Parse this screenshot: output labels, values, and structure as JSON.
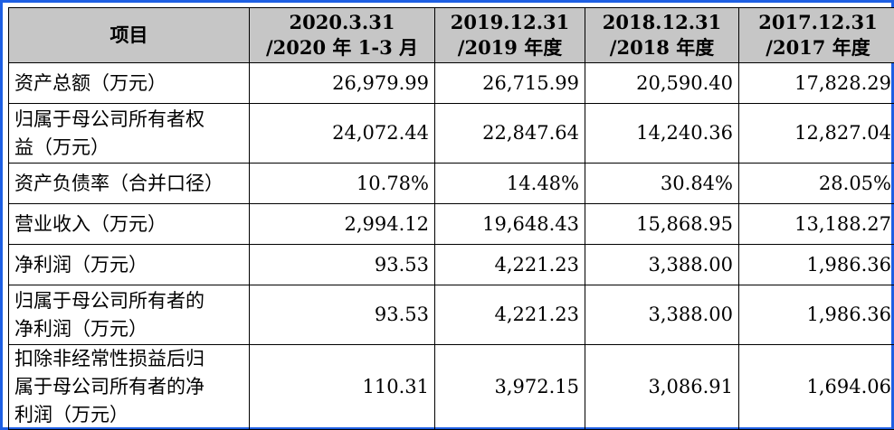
{
  "table": {
    "headers": [
      {
        "lines": [
          "项目"
        ]
      },
      {
        "lines": [
          "2020.3.31",
          "/2020 年 1-3 月"
        ]
      },
      {
        "lines": [
          "2019.12.31",
          "/2019 年度"
        ]
      },
      {
        "lines": [
          "2018.12.31",
          "/2018 年度"
        ]
      },
      {
        "lines": [
          "2017.12.31",
          "/2017 年度"
        ]
      }
    ],
    "rows": [
      {
        "label_lines": [
          "资产总额（万元）"
        ],
        "values": [
          "26,979.99",
          "26,715.99",
          "20,590.40",
          "17,828.29"
        ]
      },
      {
        "label_lines": [
          "归属于母公司所有者权",
          "益（万元）"
        ],
        "values": [
          "24,072.44",
          "22,847.64",
          "14,240.36",
          "12,827.04"
        ]
      },
      {
        "label_lines": [
          "资产负债率（合并口径）"
        ],
        "values": [
          "10.78%",
          "14.48%",
          "30.84%",
          "28.05%"
        ]
      },
      {
        "label_lines": [
          "营业收入（万元）"
        ],
        "values": [
          "2,994.12",
          "19,648.43",
          "15,868.95",
          "13,188.27"
        ]
      },
      {
        "label_lines": [
          "净利润（万元）"
        ],
        "values": [
          "93.53",
          "4,221.23",
          "3,388.00",
          "1,986.36"
        ]
      },
      {
        "label_lines": [
          "归属于母公司所有者的",
          "净利润（万元）"
        ],
        "values": [
          "93.53",
          "4,221.23",
          "3,388.00",
          "1,986.36"
        ]
      },
      {
        "label_lines": [
          "扣除非经常性损益后归",
          "属于母公司所有者的净",
          "利润（万元）"
        ],
        "values": [
          "110.31",
          "3,972.15",
          "3,086.91",
          "1,694.06"
        ]
      }
    ]
  },
  "colors": {
    "frame_border": "#1e5fe3",
    "header_background": "#c6c6c6",
    "grid": "#000000"
  }
}
